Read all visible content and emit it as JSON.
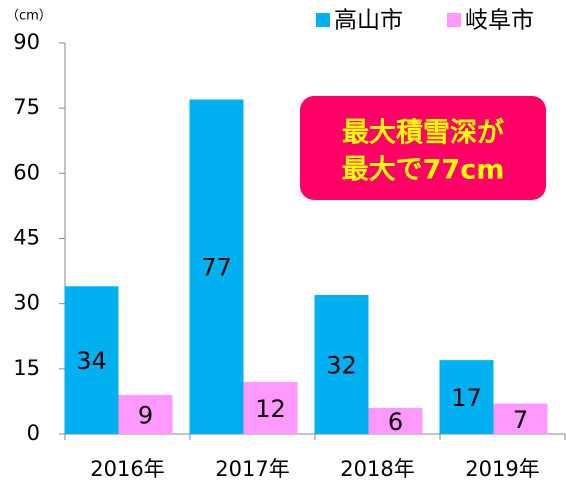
{
  "chart_data": {
    "type": "bar",
    "y_unit": "（cm）",
    "annotation": [
      "最大積雪深が",
      "最大で77cm"
    ],
    "categories": [
      "2016年",
      "2017年",
      "2018年",
      "2019年"
    ],
    "series": [
      {
        "name": "高山市",
        "color": "#00b0f0",
        "values": [
          34,
          77,
          32,
          17
        ]
      },
      {
        "name": "岐阜市",
        "color": "#ff99ff",
        "values": [
          9,
          12,
          6,
          7
        ]
      }
    ],
    "ylim": [
      0,
      90
    ],
    "yticks": [
      0,
      15,
      30,
      45,
      60,
      75,
      90
    ]
  }
}
